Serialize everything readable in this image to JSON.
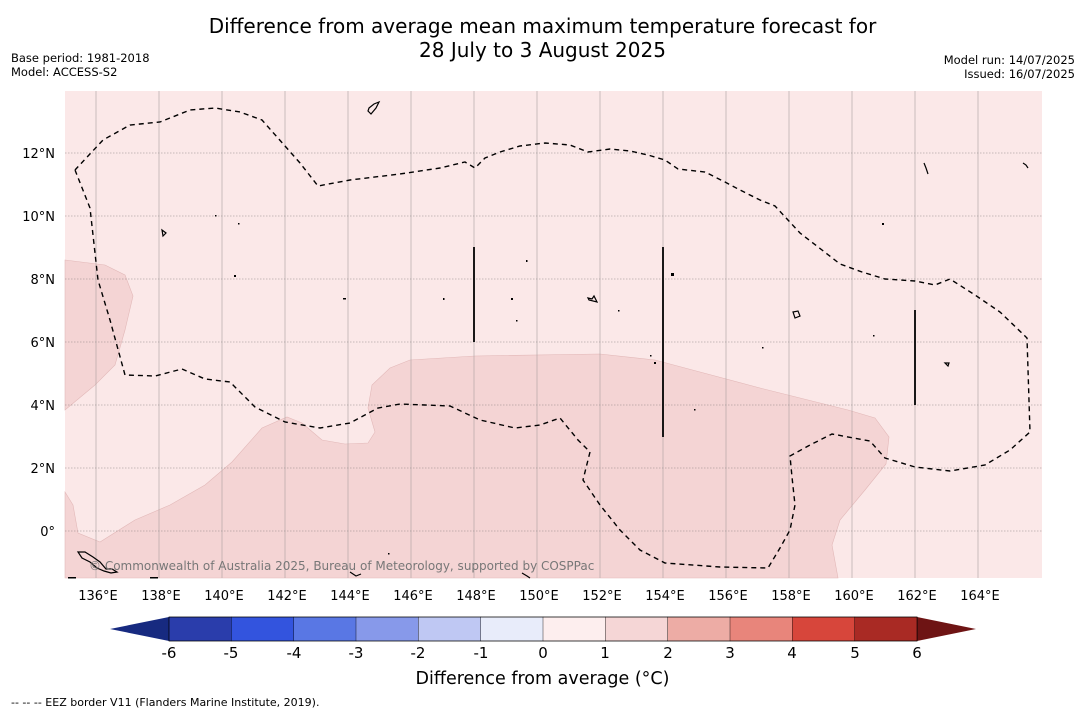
{
  "header": {
    "title_line1": "Difference from average mean maximum temperature forecast for",
    "title_line2": "28 July to 3 August 2025",
    "base_period": "Base period: 1981-2018",
    "model": "Model: ACCESS-S2",
    "model_run": "Model run: 14/07/2025",
    "issued": "Issued: 16/07/2025"
  },
  "map": {
    "lon_labels": [
      "136°E",
      "138°E",
      "140°E",
      "142°E",
      "144°E",
      "146°E",
      "148°E",
      "150°E",
      "152°E",
      "154°E",
      "156°E",
      "158°E",
      "160°E",
      "162°E",
      "164°E"
    ],
    "lat_labels": [
      "12°N",
      "10°N",
      "8°N",
      "6°N",
      "4°N",
      "2°N",
      "0°"
    ],
    "copyright": "© Commonwealth of Australia 2025, Bureau of Meteorology, supported by COSPPac",
    "fill_colors": {
      "band_0_1": "#fbe8e8",
      "band_1_2": "#f4d4d4"
    }
  },
  "colorbar": {
    "title": "Difference from average (°C)",
    "labels": [
      "-6",
      "-5",
      "-4",
      "-3",
      "-2",
      "-1",
      "0",
      "1",
      "2",
      "3",
      "4",
      "5",
      "6"
    ],
    "colors": [
      "#172a80",
      "#2a3dab",
      "#3354de",
      "#5977e4",
      "#8799ea",
      "#bfc8f3",
      "#e8ecfa",
      "#fdeeee",
      "#f5d6d6",
      "#edaca5",
      "#e8857b",
      "#d7463b",
      "#a92a24",
      "#6e1414"
    ]
  },
  "footnote": "--  --  -- EEZ border V11 (Flanders Marine Institute, 2019)."
}
